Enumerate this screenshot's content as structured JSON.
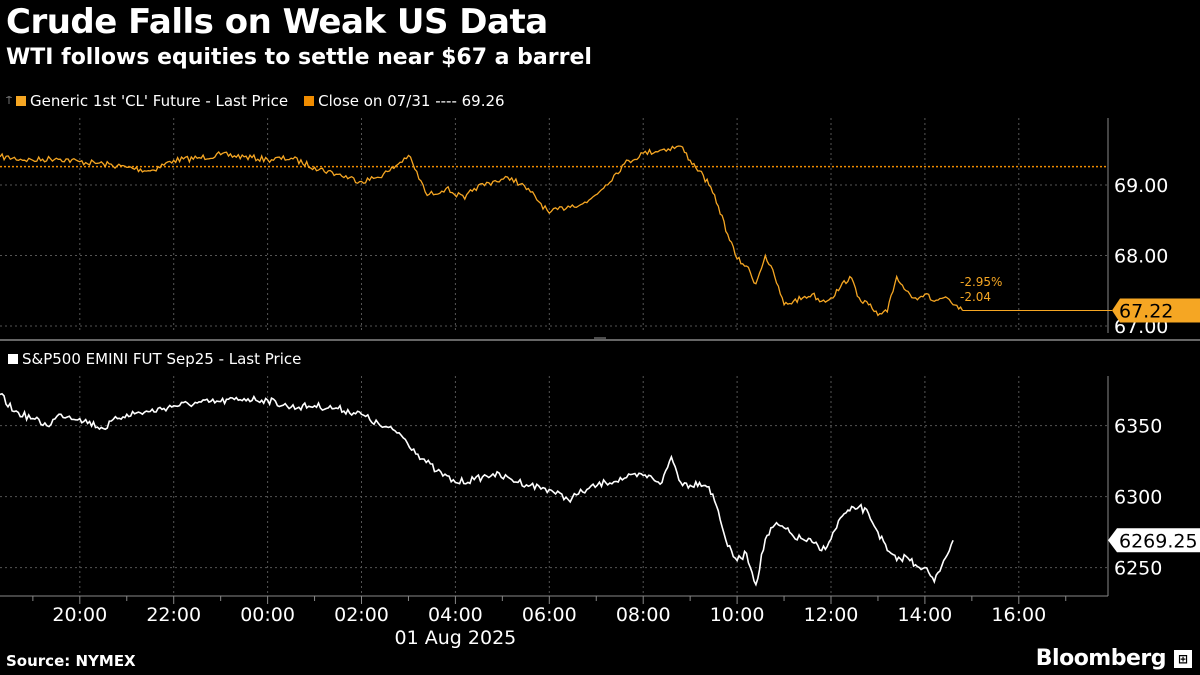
{
  "title": "Crude Falls on Weak US Data",
  "subtitle": "WTI follows equities to settle near $67 a barrel",
  "source": "Source: NYMEX",
  "brand": "Bloomberg",
  "colors": {
    "oil": "#f5a623",
    "close": "#f08c00",
    "spx": "#ffffff",
    "grid": "#555555",
    "background": "#000000"
  },
  "chart_data": [
    {
      "type": "line",
      "legend": [
        {
          "label": "Generic 1st 'CL' Future - Last Price",
          "color": "#f5a623"
        },
        {
          "label": "Close on 07/31 ---- 69.26",
          "color": "#f08c00"
        }
      ],
      "ylim": [
        66.9,
        69.95
      ],
      "yticks": [
        69.0,
        68.0,
        67.0
      ],
      "ytick_labels": [
        "69.00",
        "68.00",
        "67.00"
      ],
      "reference_line": {
        "label": "Close on 07/31",
        "value": 69.26
      },
      "last_value_label": "67.22",
      "change_labels": [
        "-2.95%",
        "-2.04"
      ],
      "series": [
        {
          "name": "Generic 1st 'CL' Future - Last Price",
          "x": [
            18.3,
            19.0,
            19.5,
            20.0,
            20.5,
            21.0,
            21.5,
            22.0,
            22.5,
            23.0,
            23.5,
            24.0,
            24.5,
            25.0,
            25.5,
            26.0,
            26.3,
            26.6,
            27.0,
            27.4,
            27.8,
            28.2,
            28.4,
            28.8,
            29.2,
            29.6,
            30.0,
            30.4,
            30.8,
            31.2,
            31.6,
            32.0,
            32.4,
            32.8,
            33.0,
            33.2,
            33.4,
            33.6,
            33.8,
            34.0,
            34.2,
            34.4,
            34.6,
            34.8,
            35.0,
            35.2,
            35.4,
            35.6,
            35.8,
            36.0,
            36.2,
            36.4,
            36.6,
            36.8,
            37.0,
            37.2,
            37.4,
            37.6,
            37.8,
            38.0,
            38.2,
            38.4,
            38.6,
            38.8
          ],
          "values": [
            69.4,
            69.35,
            69.38,
            69.33,
            69.3,
            69.25,
            69.2,
            69.35,
            69.38,
            69.43,
            69.4,
            69.36,
            69.38,
            69.25,
            69.15,
            69.05,
            69.1,
            69.2,
            69.42,
            68.85,
            68.95,
            68.8,
            68.95,
            69.05,
            69.1,
            68.9,
            68.6,
            68.7,
            68.75,
            69.0,
            69.3,
            69.45,
            69.5,
            69.55,
            69.35,
            69.2,
            69.0,
            68.7,
            68.3,
            67.95,
            67.85,
            67.6,
            68.0,
            67.7,
            67.3,
            67.35,
            67.4,
            67.45,
            67.35,
            67.4,
            67.55,
            67.7,
            67.4,
            67.3,
            67.15,
            67.2,
            67.7,
            67.5,
            67.4,
            67.45,
            67.35,
            67.4,
            67.3,
            67.22
          ]
        }
      ]
    },
    {
      "type": "line",
      "legend": [
        {
          "label": "S&P500 EMINI FUT Sep25 - Last Price",
          "color": "#ffffff"
        }
      ],
      "ylim": [
        6230,
        6385
      ],
      "yticks": [
        6350,
        6300,
        6250
      ],
      "ytick_labels": [
        "6350",
        "6300",
        "6250"
      ],
      "last_value_label": "6269.25",
      "series": [
        {
          "name": "S&P500 EMINI FUT Sep25 - Last Price",
          "x": [
            18.3,
            18.6,
            19.0,
            19.3,
            19.6,
            20.0,
            20.5,
            20.8,
            21.0,
            21.5,
            22.0,
            22.5,
            23.0,
            23.5,
            24.0,
            24.5,
            25.0,
            25.5,
            26.0,
            26.4,
            26.8,
            27.2,
            27.6,
            28.0,
            28.4,
            28.8,
            29.2,
            29.6,
            30.0,
            30.4,
            30.8,
            31.2,
            31.6,
            32.0,
            32.2,
            32.4,
            32.6,
            32.8,
            33.0,
            33.2,
            33.4,
            33.6,
            33.8,
            34.0,
            34.2,
            34.4,
            34.6,
            34.8,
            35.0,
            35.2,
            35.4,
            35.6,
            35.8,
            36.0,
            36.2,
            36.4,
            36.6,
            36.8,
            37.0,
            37.2,
            37.4,
            37.6,
            37.8,
            38.0,
            38.2,
            38.4,
            38.6
          ],
          "values": [
            6372,
            6360,
            6355,
            6350,
            6358,
            6355,
            6348,
            6355,
            6358,
            6360,
            6364,
            6366,
            6367,
            6369,
            6368,
            6363,
            6364,
            6362,
            6358,
            6350,
            6345,
            6330,
            6318,
            6310,
            6312,
            6316,
            6312,
            6308,
            6305,
            6298,
            6305,
            6310,
            6313,
            6315,
            6313,
            6310,
            6328,
            6310,
            6308,
            6310,
            6307,
            6290,
            6265,
            6255,
            6260,
            6238,
            6270,
            6280,
            6278,
            6272,
            6270,
            6268,
            6262,
            6270,
            6285,
            6290,
            6293,
            6288,
            6275,
            6262,
            6255,
            6258,
            6252,
            6250,
            6240,
            6255,
            6269.25
          ]
        }
      ]
    }
  ],
  "x_axis": {
    "ticks": [
      20,
      22,
      24,
      26,
      28,
      30,
      32,
      34,
      36,
      38,
      40
    ],
    "tick_labels": [
      "20:00",
      "22:00",
      "00:00",
      "02:00",
      "04:00",
      "06:00",
      "08:00",
      "10:00",
      "12:00",
      "14:00",
      "16:00"
    ],
    "date_label": "01 Aug 2025",
    "xlim": [
      18.3,
      41.9
    ]
  }
}
